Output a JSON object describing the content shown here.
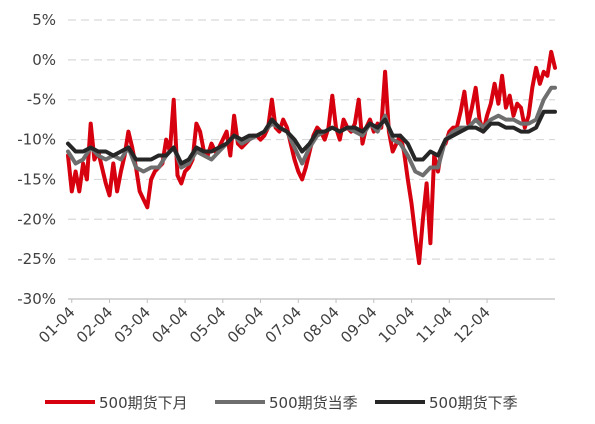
{
  "chart_data": {
    "type": "line",
    "title": "",
    "xlabel": "",
    "ylabel": "",
    "ylim": [
      -30,
      5
    ],
    "y_ticks": [
      "5%",
      "0%",
      "-5%",
      "-10%",
      "-15%",
      "-20%",
      "-25%",
      "-30%"
    ],
    "x_ticks": [
      "01-04",
      "02-04",
      "03-04",
      "04-04",
      "05-04",
      "06-04",
      "07-04",
      "08-04",
      "09-04",
      "10-04",
      "11-04",
      "12-04"
    ],
    "grid": "horizontal dashed",
    "legend_position": "bottom",
    "series": [
      {
        "name": "500期货下月",
        "color": "#d7000f",
        "points": [
          [
            0.0,
            -12.0
          ],
          [
            0.1,
            -16.5
          ],
          [
            0.2,
            -14.0
          ],
          [
            0.3,
            -16.5
          ],
          [
            0.4,
            -13.0
          ],
          [
            0.5,
            -15.0
          ],
          [
            0.6,
            -8.0
          ],
          [
            0.7,
            -12.5
          ],
          [
            0.8,
            -11.5
          ],
          [
            0.9,
            -13.5
          ],
          [
            1.0,
            -15.5
          ],
          [
            1.1,
            -17.0
          ],
          [
            1.2,
            -13.0
          ],
          [
            1.3,
            -16.5
          ],
          [
            1.4,
            -14.0
          ],
          [
            1.5,
            -12.0
          ],
          [
            1.6,
            -9.0
          ],
          [
            1.7,
            -11.0
          ],
          [
            1.8,
            -13.5
          ],
          [
            1.9,
            -16.5
          ],
          [
            2.0,
            -17.5
          ],
          [
            2.1,
            -18.5
          ],
          [
            2.2,
            -15.0
          ],
          [
            2.3,
            -14.0
          ],
          [
            2.4,
            -13.5
          ],
          [
            2.5,
            -13.0
          ],
          [
            2.6,
            -10.0
          ],
          [
            2.7,
            -11.5
          ],
          [
            2.8,
            -5.0
          ],
          [
            2.9,
            -14.5
          ],
          [
            3.0,
            -15.5
          ],
          [
            3.1,
            -14.0
          ],
          [
            3.2,
            -13.5
          ],
          [
            3.3,
            -12.5
          ],
          [
            3.4,
            -8.0
          ],
          [
            3.5,
            -9.0
          ],
          [
            3.6,
            -11.5
          ],
          [
            3.7,
            -12.0
          ],
          [
            3.8,
            -10.5
          ],
          [
            3.9,
            -11.5
          ],
          [
            4.0,
            -11.0
          ],
          [
            4.1,
            -10.0
          ],
          [
            4.2,
            -9.0
          ],
          [
            4.3,
            -12.0
          ],
          [
            4.4,
            -7.0
          ],
          [
            4.5,
            -10.5
          ],
          [
            4.6,
            -11.0
          ],
          [
            4.7,
            -10.5
          ],
          [
            4.8,
            -10.0
          ],
          [
            4.9,
            -9.5
          ],
          [
            5.0,
            -9.5
          ],
          [
            5.1,
            -10.0
          ],
          [
            5.2,
            -9.5
          ],
          [
            5.3,
            -8.5
          ],
          [
            5.4,
            -5.0
          ],
          [
            5.5,
            -8.5
          ],
          [
            5.6,
            -9.0
          ],
          [
            5.7,
            -7.5
          ],
          [
            5.8,
            -8.5
          ],
          [
            5.9,
            -10.5
          ],
          [
            6.0,
            -12.5
          ],
          [
            6.1,
            -14.0
          ],
          [
            6.2,
            -15.0
          ],
          [
            6.3,
            -13.5
          ],
          [
            6.4,
            -11.5
          ],
          [
            6.5,
            -9.5
          ],
          [
            6.6,
            -8.5
          ],
          [
            6.7,
            -9.0
          ],
          [
            6.8,
            -10.0
          ],
          [
            6.9,
            -8.5
          ],
          [
            7.0,
            -4.5
          ],
          [
            7.1,
            -8.5
          ],
          [
            7.2,
            -10.0
          ],
          [
            7.3,
            -7.5
          ],
          [
            7.4,
            -8.5
          ],
          [
            7.5,
            -9.0
          ],
          [
            7.6,
            -8.0
          ],
          [
            7.7,
            -5.0
          ],
          [
            7.8,
            -10.5
          ],
          [
            7.9,
            -8.5
          ],
          [
            8.0,
            -7.5
          ],
          [
            8.1,
            -9.0
          ],
          [
            8.2,
            -8.0
          ],
          [
            8.3,
            -8.5
          ],
          [
            8.4,
            -1.5
          ],
          [
            8.5,
            -9.0
          ],
          [
            8.6,
            -11.5
          ],
          [
            8.7,
            -10.5
          ],
          [
            8.8,
            -9.5
          ],
          [
            8.9,
            -11.5
          ],
          [
            9.0,
            -15.0
          ],
          [
            9.1,
            -18.0
          ],
          [
            9.2,
            -22.0
          ],
          [
            9.3,
            -25.5
          ],
          [
            9.4,
            -20.0
          ],
          [
            9.5,
            -15.5
          ],
          [
            9.6,
            -23.0
          ],
          [
            9.7,
            -12.0
          ],
          [
            9.8,
            -14.0
          ],
          [
            9.9,
            -11.0
          ],
          [
            10.0,
            -10.5
          ],
          [
            10.1,
            -9.0
          ],
          [
            10.2,
            -8.5
          ],
          [
            10.3,
            -8.5
          ],
          [
            10.4,
            -6.5
          ],
          [
            10.5,
            -4.0
          ],
          [
            10.6,
            -8.0
          ],
          [
            10.7,
            -6.0
          ],
          [
            10.8,
            -3.5
          ],
          [
            10.9,
            -7.5
          ],
          [
            11.0,
            -9.0
          ],
          [
            11.1,
            -7.0
          ],
          [
            11.2,
            -5.5
          ],
          [
            11.3,
            -3.0
          ],
          [
            11.4,
            -5.5
          ],
          [
            11.5,
            -2.0
          ],
          [
            11.6,
            -6.0
          ],
          [
            11.7,
            -4.5
          ],
          [
            11.8,
            -7.0
          ],
          [
            11.9,
            -5.5
          ],
          [
            12.0,
            -6.0
          ],
          [
            12.1,
            -8.5
          ],
          [
            12.2,
            -7.0
          ],
          [
            12.3,
            -3.5
          ],
          [
            12.4,
            -1.0
          ],
          [
            12.5,
            -3.0
          ],
          [
            12.6,
            -1.5
          ],
          [
            12.7,
            -2.0
          ],
          [
            12.8,
            1.0
          ],
          [
            12.9,
            -1.0
          ]
        ]
      },
      {
        "name": "500期货当季",
        "color": "#6e6e6e",
        "points": [
          [
            0.0,
            -11.5
          ],
          [
            0.2,
            -13.0
          ],
          [
            0.4,
            -12.5
          ],
          [
            0.6,
            -11.0
          ],
          [
            0.8,
            -12.0
          ],
          [
            1.0,
            -12.5
          ],
          [
            1.2,
            -12.0
          ],
          [
            1.4,
            -12.5
          ],
          [
            1.6,
            -11.0
          ],
          [
            1.8,
            -13.5
          ],
          [
            2.0,
            -14.0
          ],
          [
            2.2,
            -13.5
          ],
          [
            2.4,
            -13.5
          ],
          [
            2.6,
            -12.0
          ],
          [
            2.8,
            -11.0
          ],
          [
            3.0,
            -13.5
          ],
          [
            3.2,
            -13.0
          ],
          [
            3.4,
            -11.5
          ],
          [
            3.6,
            -12.0
          ],
          [
            3.8,
            -12.5
          ],
          [
            4.0,
            -11.5
          ],
          [
            4.2,
            -10.5
          ],
          [
            4.4,
            -9.5
          ],
          [
            4.6,
            -10.5
          ],
          [
            4.8,
            -10.0
          ],
          [
            5.0,
            -9.5
          ],
          [
            5.2,
            -9.0
          ],
          [
            5.4,
            -8.0
          ],
          [
            5.6,
            -8.5
          ],
          [
            5.8,
            -9.0
          ],
          [
            6.0,
            -11.0
          ],
          [
            6.2,
            -13.0
          ],
          [
            6.4,
            -11.0
          ],
          [
            6.6,
            -9.5
          ],
          [
            6.8,
            -9.0
          ],
          [
            7.0,
            -8.5
          ],
          [
            7.2,
            -9.0
          ],
          [
            7.4,
            -8.5
          ],
          [
            7.6,
            -9.0
          ],
          [
            7.8,
            -9.5
          ],
          [
            8.0,
            -8.0
          ],
          [
            8.2,
            -9.0
          ],
          [
            8.4,
            -7.0
          ],
          [
            8.6,
            -10.0
          ],
          [
            8.8,
            -10.5
          ],
          [
            9.0,
            -12.0
          ],
          [
            9.2,
            -14.0
          ],
          [
            9.4,
            -14.5
          ],
          [
            9.6,
            -13.5
          ],
          [
            9.8,
            -13.5
          ],
          [
            10.0,
            -10.0
          ],
          [
            10.2,
            -9.0
          ],
          [
            10.4,
            -8.5
          ],
          [
            10.6,
            -8.5
          ],
          [
            10.8,
            -7.5
          ],
          [
            11.0,
            -8.5
          ],
          [
            11.2,
            -7.5
          ],
          [
            11.4,
            -7.0
          ],
          [
            11.6,
            -7.5
          ],
          [
            11.8,
            -7.5
          ],
          [
            12.0,
            -8.0
          ],
          [
            12.2,
            -8.0
          ],
          [
            12.4,
            -7.5
          ],
          [
            12.6,
            -5.0
          ],
          [
            12.8,
            -3.5
          ],
          [
            12.9,
            -3.5
          ]
        ]
      },
      {
        "name": "500期货下季",
        "color": "#262626",
        "points": [
          [
            0.0,
            -10.5
          ],
          [
            0.2,
            -11.5
          ],
          [
            0.4,
            -11.5
          ],
          [
            0.6,
            -11.0
          ],
          [
            0.8,
            -11.5
          ],
          [
            1.0,
            -11.5
          ],
          [
            1.2,
            -12.0
          ],
          [
            1.4,
            -11.5
          ],
          [
            1.6,
            -11.0
          ],
          [
            1.8,
            -12.5
          ],
          [
            2.0,
            -12.5
          ],
          [
            2.2,
            -12.5
          ],
          [
            2.4,
            -12.0
          ],
          [
            2.6,
            -12.0
          ],
          [
            2.8,
            -11.0
          ],
          [
            3.0,
            -13.0
          ],
          [
            3.2,
            -12.5
          ],
          [
            3.4,
            -11.0
          ],
          [
            3.6,
            -11.5
          ],
          [
            3.8,
            -11.5
          ],
          [
            4.0,
            -11.0
          ],
          [
            4.2,
            -10.5
          ],
          [
            4.4,
            -9.5
          ],
          [
            4.6,
            -10.0
          ],
          [
            4.8,
            -9.5
          ],
          [
            5.0,
            -9.5
          ],
          [
            5.2,
            -9.0
          ],
          [
            5.4,
            -7.5
          ],
          [
            5.6,
            -8.5
          ],
          [
            5.8,
            -9.0
          ],
          [
            6.0,
            -10.0
          ],
          [
            6.2,
            -11.5
          ],
          [
            6.4,
            -10.5
          ],
          [
            6.6,
            -9.0
          ],
          [
            6.8,
            -9.0
          ],
          [
            7.0,
            -8.5
          ],
          [
            7.2,
            -9.0
          ],
          [
            7.4,
            -8.5
          ],
          [
            7.6,
            -8.5
          ],
          [
            7.8,
            -9.0
          ],
          [
            8.0,
            -8.0
          ],
          [
            8.2,
            -8.5
          ],
          [
            8.4,
            -7.5
          ],
          [
            8.6,
            -9.5
          ],
          [
            8.8,
            -9.5
          ],
          [
            9.0,
            -10.5
          ],
          [
            9.2,
            -12.5
          ],
          [
            9.4,
            -12.5
          ],
          [
            9.6,
            -11.5
          ],
          [
            9.8,
            -12.0
          ],
          [
            10.0,
            -10.0
          ],
          [
            10.2,
            -9.5
          ],
          [
            10.4,
            -9.0
          ],
          [
            10.6,
            -8.5
          ],
          [
            10.8,
            -8.5
          ],
          [
            11.0,
            -9.0
          ],
          [
            11.2,
            -8.0
          ],
          [
            11.4,
            -8.0
          ],
          [
            11.6,
            -8.5
          ],
          [
            11.8,
            -8.5
          ],
          [
            12.0,
            -9.0
          ],
          [
            12.2,
            -9.0
          ],
          [
            12.4,
            -8.5
          ],
          [
            12.6,
            -6.5
          ],
          [
            12.8,
            -6.5
          ],
          [
            12.9,
            -6.5
          ]
        ]
      }
    ]
  }
}
